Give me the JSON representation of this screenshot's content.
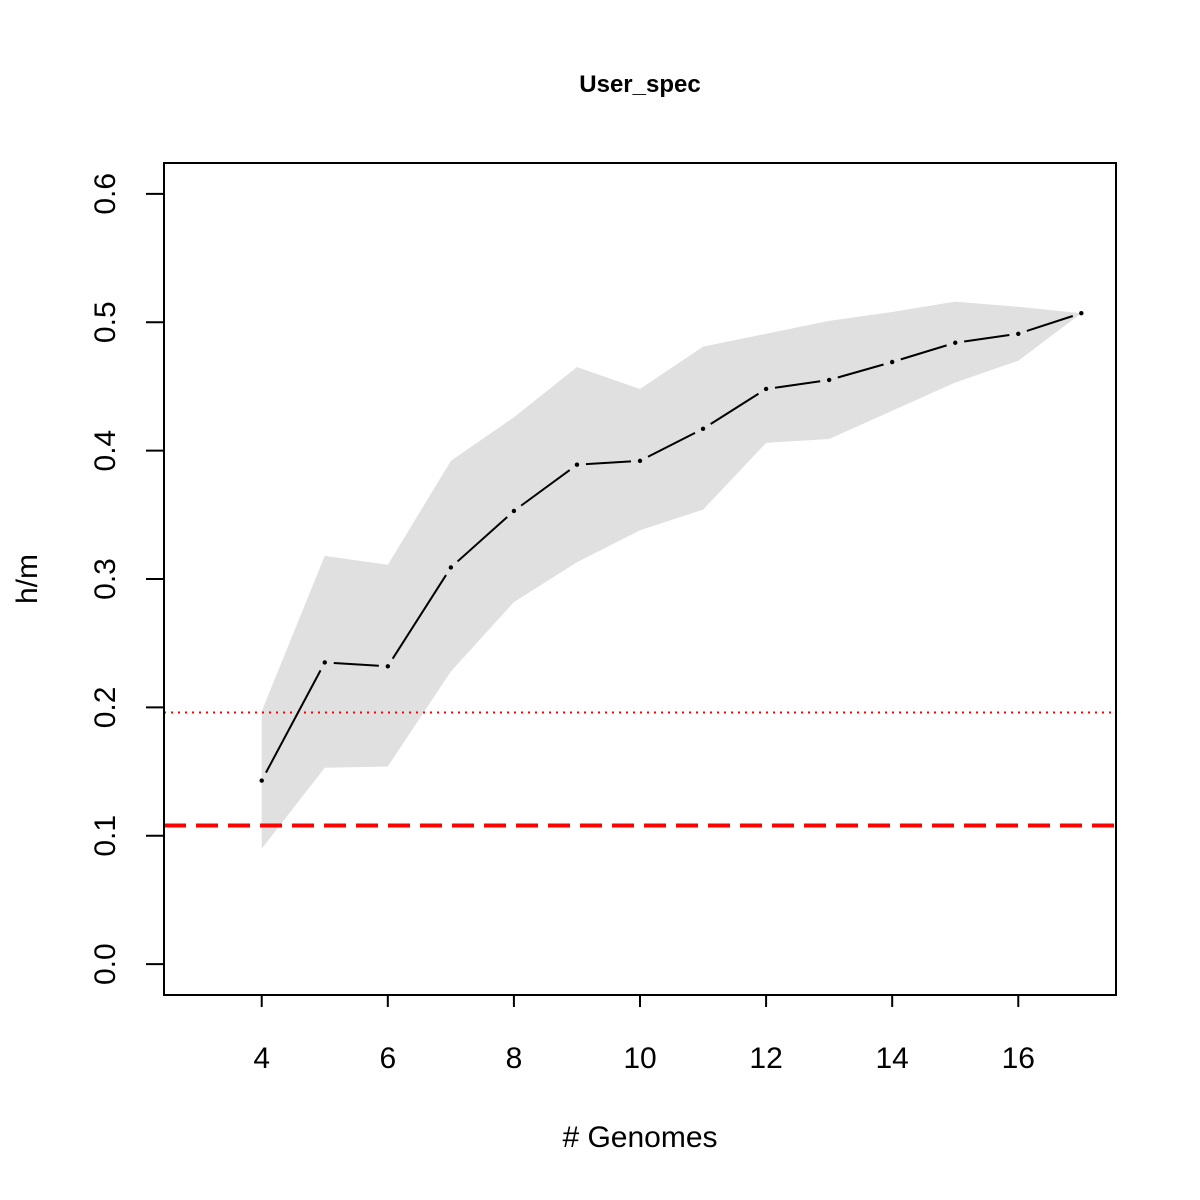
{
  "chart_data": {
    "type": "line",
    "title": "User_spec",
    "xlabel": "# Genomes",
    "ylabel": "h/m",
    "xlim": [
      2.45,
      17.55
    ],
    "ylim": [
      -0.024,
      0.624
    ],
    "xticks": [
      "4",
      "6",
      "8",
      "10",
      "12",
      "14",
      "16"
    ],
    "yticks": [
      "0.0",
      "0.1",
      "0.2",
      "0.3",
      "0.4",
      "0.5",
      "0.6"
    ],
    "grid": false,
    "x": [
      4,
      5,
      6,
      7,
      8,
      9,
      10,
      11,
      12,
      13,
      14,
      15,
      16,
      17
    ],
    "series": [
      {
        "values": [
          0.143,
          0.235,
          0.232,
          0.309,
          0.353,
          0.389,
          0.392,
          0.417,
          0.448,
          0.455,
          0.469,
          0.484,
          0.491,
          0.507
        ]
      }
    ],
    "band": {
      "upper": [
        0.197,
        0.318,
        0.311,
        0.392,
        0.426,
        0.465,
        0.448,
        0.481,
        0.491,
        0.501,
        0.508,
        0.516,
        0.512,
        0.507
      ],
      "lower": [
        0.09,
        0.153,
        0.154,
        0.228,
        0.282,
        0.313,
        0.338,
        0.354,
        0.406,
        0.409,
        0.431,
        0.453,
        0.47,
        0.507
      ],
      "color": "#e0e0e0"
    },
    "reference_lines": [
      {
        "y": 0.196,
        "style": "dotted",
        "color": "#ff0000"
      },
      {
        "y": 0.108,
        "style": "dashed",
        "color": "#ff0000"
      }
    ],
    "line_color": "#000000"
  }
}
